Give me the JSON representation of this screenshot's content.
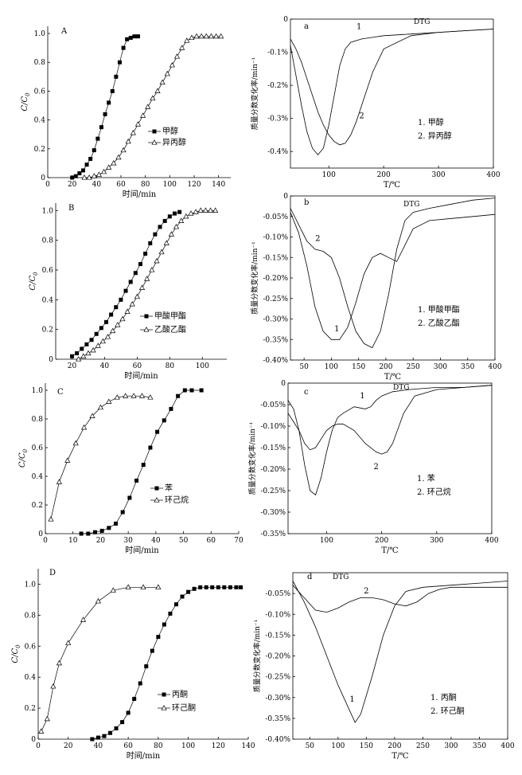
{
  "chart_data": [
    {
      "id": "A",
      "panel_label": "A",
      "type": "line",
      "xlabel": "时间/min",
      "ylabel": "C/C0",
      "ylabel_main": "C/C",
      "ylabel_sub": "0",
      "xlim": [
        0,
        150
      ],
      "ylim": [
        0,
        1.05
      ],
      "xticks": [
        "0",
        "20",
        "40",
        "60",
        "80",
        "100",
        "120",
        "140"
      ],
      "yticks": [
        "0",
        "0.2",
        "0.4",
        "0.6",
        "0.8",
        "1.0"
      ],
      "series": [
        {
          "name": "甲醇",
          "marker": "square",
          "x": [
            20,
            23,
            26,
            29,
            32,
            35,
            38,
            41,
            44,
            47,
            50,
            53,
            56,
            59,
            62,
            65,
            68,
            71,
            74
          ],
          "y": [
            0.0,
            0.01,
            0.03,
            0.05,
            0.09,
            0.13,
            0.19,
            0.27,
            0.35,
            0.44,
            0.52,
            0.6,
            0.7,
            0.8,
            0.9,
            0.96,
            0.97,
            0.98,
            0.98
          ]
        },
        {
          "name": "异丙醇",
          "marker": "triangle",
          "x": [
            30,
            34,
            38,
            42,
            46,
            50,
            54,
            58,
            62,
            66,
            70,
            74,
            78,
            82,
            86,
            90,
            94,
            98,
            102,
            106,
            110,
            114,
            118,
            122,
            126,
            130,
            134,
            138,
            142
          ],
          "y": [
            0.0,
            0.0,
            0.01,
            0.02,
            0.04,
            0.07,
            0.1,
            0.14,
            0.19,
            0.25,
            0.31,
            0.37,
            0.43,
            0.49,
            0.55,
            0.6,
            0.66,
            0.72,
            0.78,
            0.84,
            0.9,
            0.95,
            0.97,
            0.98,
            0.98,
            0.98,
            0.98,
            0.98,
            0.98
          ]
        }
      ]
    },
    {
      "id": "a",
      "panel_label": "a",
      "type": "line",
      "subtitle": "DTG",
      "xlabel": "T/℃",
      "ylabel": "质量分数变化率/min⁻¹",
      "xlim": [
        30,
        400
      ],
      "ylim": [
        -0.45,
        0
      ],
      "xticks": [
        "100",
        "200",
        "300",
        "400"
      ],
      "yticks": [
        "0",
        "-0.1%",
        "-0.2%",
        "-0.3%",
        "-0.4%"
      ],
      "ytick_values": [
        0,
        -0.1,
        -0.2,
        -0.3,
        -0.4
      ],
      "legend": [
        "1. 甲醇",
        "2. 异丙醇"
      ],
      "series": [
        {
          "name": "1",
          "x": [
            30,
            40,
            50,
            60,
            70,
            80,
            90,
            100,
            110,
            120,
            130,
            140,
            160,
            180,
            200,
            250,
            300,
            350,
            400
          ],
          "y": [
            -0.08,
            -0.17,
            -0.26,
            -0.34,
            -0.39,
            -0.41,
            -0.39,
            -0.32,
            -0.23,
            -0.14,
            -0.09,
            -0.07,
            -0.06,
            -0.055,
            -0.05,
            -0.045,
            -0.04,
            -0.035,
            -0.03
          ]
        },
        {
          "name": "2",
          "x": [
            30,
            40,
            50,
            60,
            70,
            80,
            90,
            100,
            110,
            120,
            130,
            140,
            150,
            160,
            180,
            200,
            250,
            300,
            350,
            400
          ],
          "y": [
            -0.06,
            -0.09,
            -0.13,
            -0.18,
            -0.23,
            -0.28,
            -0.32,
            -0.35,
            -0.37,
            -0.38,
            -0.375,
            -0.35,
            -0.31,
            -0.26,
            -0.16,
            -0.09,
            -0.05,
            -0.04,
            -0.035,
            -0.03
          ]
        }
      ],
      "curve_labels": [
        {
          "text": "1",
          "x": 155,
          "y": -0.03
        },
        {
          "text": "2",
          "x": 160,
          "y": -0.3
        }
      ]
    },
    {
      "id": "B",
      "panel_label": "B",
      "type": "line",
      "xlabel": "时间/min",
      "ylabel": "C/C0",
      "ylabel_main": "C/C",
      "ylabel_sub": "0",
      "xlim": [
        10,
        115
      ],
      "ylim": [
        0,
        1.05
      ],
      "xticks": [
        "20",
        "40",
        "60",
        "80",
        "100"
      ],
      "yticks": [
        "0",
        "0.2",
        "0.4",
        "0.6",
        "0.8",
        "1.0"
      ],
      "series": [
        {
          "name": "甲酸甲酯",
          "marker": "square",
          "x": [
            20,
            23,
            26,
            29,
            32,
            35,
            38,
            41,
            44,
            47,
            50,
            53,
            56,
            59,
            62,
            65,
            68,
            71,
            74,
            77,
            80,
            83,
            86
          ],
          "y": [
            0.02,
            0.04,
            0.07,
            0.1,
            0.13,
            0.17,
            0.21,
            0.25,
            0.3,
            0.35,
            0.4,
            0.46,
            0.52,
            0.58,
            0.64,
            0.71,
            0.78,
            0.84,
            0.89,
            0.93,
            0.96,
            0.98,
            0.99
          ]
        },
        {
          "name": "乙酸乙酯",
          "marker": "triangle",
          "x": [
            24,
            27,
            30,
            33,
            36,
            39,
            42,
            45,
            48,
            51,
            54,
            57,
            60,
            63,
            66,
            69,
            72,
            75,
            78,
            81,
            84,
            87,
            90,
            93,
            96,
            99,
            102,
            105,
            108
          ],
          "y": [
            0.0,
            0.02,
            0.04,
            0.06,
            0.09,
            0.12,
            0.15,
            0.19,
            0.23,
            0.27,
            0.32,
            0.37,
            0.42,
            0.48,
            0.54,
            0.6,
            0.66,
            0.72,
            0.78,
            0.84,
            0.89,
            0.93,
            0.96,
            0.98,
            0.99,
            1.0,
            1.0,
            1.0,
            1.0
          ]
        }
      ]
    },
    {
      "id": "b",
      "panel_label": "b",
      "type": "line",
      "subtitle": "DTG",
      "xlabel": "T/℃",
      "ylabel": "质量分数变化率/min⁻¹",
      "xlim": [
        25,
        400
      ],
      "ylim": [
        -0.4,
        0
      ],
      "xticks": [
        "50",
        "100",
        "150",
        "200",
        "250",
        "300",
        "350",
        "400"
      ],
      "yticks": [
        "0",
        "-0.05%",
        "-0.10%",
        "-0.15%",
        "-0.20%",
        "-0.25%",
        "-0.30%",
        "-0.35%",
        "-0.40%"
      ],
      "ytick_values": [
        0,
        -0.05,
        -0.1,
        -0.15,
        -0.2,
        -0.25,
        -0.3,
        -0.35,
        -0.4
      ],
      "legend": [
        "1. 甲酸甲酯",
        "2. 乙酸乙酯"
      ],
      "series": [
        {
          "name": "1",
          "x": [
            25,
            40,
            55,
            70,
            85,
            100,
            115,
            130,
            145,
            160,
            175,
            190,
            205,
            220,
            235,
            250,
            280,
            320,
            360,
            400
          ],
          "y": [
            -0.04,
            -0.09,
            -0.17,
            -0.27,
            -0.33,
            -0.35,
            -0.35,
            -0.32,
            -0.26,
            -0.19,
            -0.15,
            -0.14,
            -0.15,
            -0.16,
            -0.12,
            -0.08,
            -0.06,
            -0.055,
            -0.05,
            -0.045
          ]
        },
        {
          "name": "2",
          "x": [
            25,
            40,
            55,
            70,
            85,
            100,
            115,
            130,
            145,
            160,
            175,
            190,
            205,
            220,
            235,
            250,
            280,
            320,
            360,
            400
          ],
          "y": [
            -0.03,
            -0.07,
            -0.11,
            -0.13,
            -0.135,
            -0.15,
            -0.2,
            -0.27,
            -0.33,
            -0.36,
            -0.37,
            -0.33,
            -0.24,
            -0.13,
            -0.06,
            -0.04,
            -0.03,
            -0.02,
            -0.01,
            -0.005
          ]
        }
      ],
      "curve_labels": [
        {
          "text": "2",
          "x": 75,
          "y": -0.11
        },
        {
          "text": "1",
          "x": 110,
          "y": -0.33
        }
      ]
    },
    {
      "id": "C",
      "panel_label": "C",
      "type": "line",
      "xlabel": "时间/min",
      "ylabel": "C/C0",
      "ylabel_main": "C/C",
      "ylabel_sub": "0",
      "xlim": [
        0,
        70
      ],
      "ylim": [
        0,
        1.05
      ],
      "xticks": [
        "0",
        "10",
        "20",
        "30",
        "40",
        "50",
        "60",
        "70"
      ],
      "yticks": [
        "0",
        "0.2",
        "0.4",
        "0.6",
        "0.8",
        "1.0"
      ],
      "series": [
        {
          "name": "苯",
          "marker": "square",
          "x": [
            13,
            15.5,
            18,
            20.5,
            23,
            25.5,
            28,
            30.5,
            33,
            35.5,
            38,
            40.5,
            43,
            45.5,
            48,
            50.5,
            53,
            56.5
          ],
          "y": [
            0.0,
            0.0,
            0.01,
            0.02,
            0.04,
            0.07,
            0.15,
            0.25,
            0.37,
            0.48,
            0.6,
            0.71,
            0.79,
            0.87,
            0.96,
            1.0,
            1.0,
            1.0
          ]
        },
        {
          "name": "环己烷",
          "marker": "triangle",
          "x": [
            2,
            5,
            8,
            11,
            14,
            17,
            20,
            23,
            26,
            29,
            32,
            35,
            38
          ],
          "y": [
            0.1,
            0.36,
            0.51,
            0.63,
            0.74,
            0.82,
            0.88,
            0.92,
            0.95,
            0.96,
            0.96,
            0.96,
            0.95
          ]
        }
      ]
    },
    {
      "id": "c",
      "panel_label": "c",
      "type": "line",
      "subtitle": "DTG",
      "xlabel": "T/℃",
      "ylabel": "质量分数变化率/min⁻¹",
      "xlim": [
        30,
        400
      ],
      "ylim": [
        -0.35,
        0
      ],
      "xticks": [
        "100",
        "200",
        "300",
        "400"
      ],
      "yticks": [
        "0",
        "-0.05%",
        "-0.10%",
        "-0.15%",
        "-0.20%",
        "-0.25%",
        "-0.30%",
        "-0.35%"
      ],
      "ytick_values": [
        0,
        -0.05,
        -0.1,
        -0.15,
        -0.2,
        -0.25,
        -0.3,
        -0.35
      ],
      "legend": [
        "1. 苯",
        "2. 环己烷"
      ],
      "series": [
        {
          "name": "1",
          "x": [
            30,
            40,
            50,
            60,
            70,
            80,
            90,
            100,
            110,
            120,
            130,
            150,
            170,
            180,
            190,
            200,
            220,
            250,
            300,
            350,
            400
          ],
          "y": [
            -0.04,
            -0.06,
            -0.11,
            -0.19,
            -0.25,
            -0.26,
            -0.22,
            -0.16,
            -0.11,
            -0.08,
            -0.07,
            -0.055,
            -0.06,
            -0.055,
            -0.04,
            -0.03,
            -0.02,
            -0.015,
            -0.01,
            -0.01,
            -0.005
          ]
        },
        {
          "name": "2",
          "x": [
            30,
            40,
            50,
            60,
            70,
            80,
            90,
            100,
            110,
            120,
            130,
            150,
            170,
            190,
            200,
            210,
            220,
            240,
            260,
            300,
            350,
            400
          ],
          "y": [
            -0.07,
            -0.09,
            -0.11,
            -0.14,
            -0.155,
            -0.15,
            -0.13,
            -0.11,
            -0.1,
            -0.095,
            -0.095,
            -0.11,
            -0.14,
            -0.16,
            -0.165,
            -0.16,
            -0.14,
            -0.07,
            -0.03,
            -0.015,
            -0.01,
            -0.005
          ]
        }
      ],
      "curve_labels": [
        {
          "text": "1",
          "x": 165,
          "y": -0.035
        },
        {
          "text": "2",
          "x": 190,
          "y": -0.2
        }
      ]
    },
    {
      "id": "D",
      "panel_label": "D",
      "type": "line",
      "xlabel": "时间/min",
      "ylabel": "C/C0",
      "ylabel_main": "C/C",
      "ylabel_sub": "0",
      "xlim": [
        0,
        140
      ],
      "ylim": [
        0,
        1.1
      ],
      "xticks": [
        "0",
        "20",
        "40",
        "60",
        "80",
        "100",
        "120",
        "140"
      ],
      "yticks": [
        "0",
        "0.2",
        "0.4",
        "0.6",
        "0.8",
        "1.0"
      ],
      "series": [
        {
          "name": "丙酮",
          "marker": "square",
          "x": [
            36,
            40,
            44,
            48,
            52,
            56,
            60,
            64,
            68,
            72,
            76,
            80,
            84,
            88,
            92,
            96,
            100,
            104,
            108,
            112,
            116,
            120,
            124,
            128,
            132,
            135
          ],
          "y": [
            0.0,
            0.01,
            0.02,
            0.04,
            0.07,
            0.11,
            0.17,
            0.26,
            0.36,
            0.47,
            0.57,
            0.66,
            0.74,
            0.81,
            0.87,
            0.92,
            0.95,
            0.97,
            0.98,
            0.98,
            0.98,
            0.98,
            0.98,
            0.98,
            0.98,
            0.98
          ]
        },
        {
          "name": "环己酮",
          "marker": "triangle",
          "x": [
            2,
            6,
            10,
            14,
            20,
            30,
            40,
            50,
            60,
            70,
            80
          ],
          "y": [
            0.05,
            0.13,
            0.34,
            0.49,
            0.62,
            0.77,
            0.89,
            0.96,
            0.98,
            0.98,
            0.98
          ]
        }
      ]
    },
    {
      "id": "d",
      "panel_label": "d",
      "type": "line",
      "subtitle": "DTG",
      "xlabel": "T/℃",
      "ylabel": "质量分数变化率/min⁻¹",
      "xlim": [
        20,
        400
      ],
      "ylim": [
        -0.4,
        0
      ],
      "xticks": [
        "50",
        "100",
        "150",
        "200",
        "250",
        "300",
        "350",
        "400"
      ],
      "yticks": [
        "-0.05%",
        "-0.10%",
        "-0.15%",
        "-0.20%",
        "-0.25%",
        "-0.30%",
        "-0.35%",
        "-0.40%"
      ],
      "ytick_values": [
        -0.05,
        -0.1,
        -0.15,
        -0.2,
        -0.25,
        -0.3,
        -0.35,
        -0.4
      ],
      "legend": [
        "1. 丙酮",
        "2. 环己酮"
      ],
      "series": [
        {
          "name": "1",
          "x": [
            20,
            40,
            60,
            80,
            100,
            120,
            130,
            140,
            160,
            180,
            200,
            220,
            250,
            300,
            350,
            400
          ],
          "y": [
            -0.02,
            -0.07,
            -0.13,
            -0.2,
            -0.27,
            -0.33,
            -0.36,
            -0.34,
            -0.25,
            -0.15,
            -0.08,
            -0.045,
            -0.035,
            -0.03,
            -0.025,
            -0.02
          ]
        },
        {
          "name": "2",
          "x": [
            20,
            40,
            60,
            80,
            100,
            120,
            140,
            160,
            180,
            200,
            220,
            240,
            260,
            280,
            300,
            350,
            400
          ],
          "y": [
            -0.03,
            -0.06,
            -0.09,
            -0.095,
            -0.085,
            -0.07,
            -0.06,
            -0.06,
            -0.065,
            -0.075,
            -0.08,
            -0.07,
            -0.05,
            -0.04,
            -0.035,
            -0.035,
            -0.035
          ]
        }
      ],
      "curve_labels": [
        {
          "text": "2",
          "x": 150,
          "y": -0.05
        },
        {
          "text": "1",
          "x": 125,
          "y": -0.31
        }
      ]
    }
  ]
}
